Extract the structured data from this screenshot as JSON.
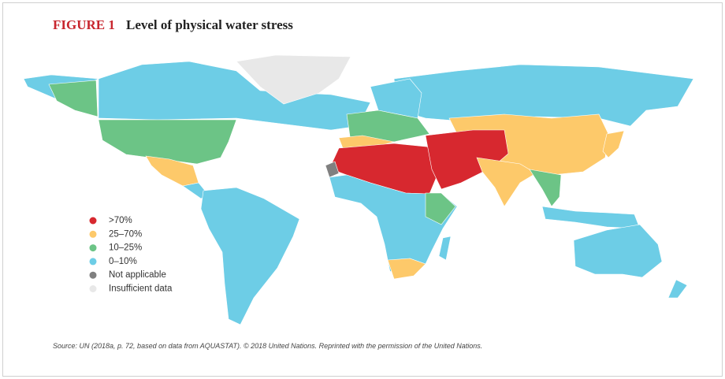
{
  "header": {
    "figure_label": "FIGURE 1",
    "title": "Level of physical water stress"
  },
  "legend": {
    "items": [
      {
        "label": ">70%",
        "color": "#d7282f"
      },
      {
        "label": "25–70%",
        "color": "#fdc96a"
      },
      {
        "label": "10–25%",
        "color": "#6cc486"
      },
      {
        "label": "0–10%",
        "color": "#6dcde6"
      },
      {
        "label": "Not applicable",
        "color": "#808080"
      },
      {
        "label": "Insufficient data",
        "color": "#e8e8e8"
      }
    ]
  },
  "source": "Source: UN (2018a, p. 72, based on data from AQUASTAT). © 2018 United Nations. Reprinted with the permission of the United Nations."
}
